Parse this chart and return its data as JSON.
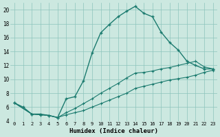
{
  "xlabel": "Humidex (Indice chaleur)",
  "bg_color": "#cce8e0",
  "line_color": "#1a7a6e",
  "xlim": [
    -0.5,
    23.5
  ],
  "ylim": [
    4,
    21
  ],
  "yticks": [
    4,
    6,
    8,
    10,
    12,
    14,
    16,
    18,
    20
  ],
  "xtick_labels": [
    "0",
    "1",
    "2",
    "3",
    "4",
    "5",
    "6",
    "7",
    "8",
    "9",
    "10",
    "11",
    "12",
    "13",
    "14",
    "15",
    "16",
    "17",
    "18",
    "19",
    "20",
    "21",
    "22",
    "23"
  ],
  "line1_x": [
    0,
    1,
    2,
    3,
    4,
    5,
    6,
    7,
    8,
    9,
    10,
    11,
    12,
    13,
    14,
    15,
    16,
    17,
    18,
    19,
    20,
    21,
    22,
    23
  ],
  "line1_y": [
    6.6,
    6.0,
    5.0,
    5.0,
    4.8,
    4.5,
    7.2,
    7.5,
    9.8,
    13.8,
    16.7,
    17.9,
    19.0,
    19.8,
    20.5,
    19.5,
    19.0,
    16.8,
    15.3,
    14.2,
    12.6,
    12.0,
    11.5,
    11.5
  ],
  "line2_x": [
    0,
    2,
    3,
    4,
    5,
    6,
    7,
    8,
    9,
    10,
    11,
    12,
    13,
    14,
    15,
    16,
    17,
    18,
    19,
    20,
    21,
    22,
    23
  ],
  "line2_y": [
    6.6,
    5.0,
    4.9,
    4.8,
    4.5,
    4.9,
    5.2,
    5.5,
    6.0,
    6.5,
    7.0,
    7.5,
    8.0,
    8.7,
    9.0,
    9.3,
    9.6,
    9.9,
    10.1,
    10.3,
    10.6,
    11.0,
    11.3
  ],
  "line3_x": [
    0,
    2,
    3,
    4,
    5,
    6,
    7,
    8,
    9,
    10,
    11,
    12,
    13,
    14,
    15,
    16,
    17,
    18,
    19,
    20,
    21,
    22,
    23
  ],
  "line3_y": [
    6.6,
    5.0,
    4.9,
    4.8,
    4.5,
    5.2,
    5.8,
    6.5,
    7.2,
    8.0,
    8.7,
    9.4,
    10.2,
    10.9,
    11.0,
    11.2,
    11.5,
    11.7,
    12.0,
    12.3,
    12.6,
    11.8,
    11.5
  ]
}
